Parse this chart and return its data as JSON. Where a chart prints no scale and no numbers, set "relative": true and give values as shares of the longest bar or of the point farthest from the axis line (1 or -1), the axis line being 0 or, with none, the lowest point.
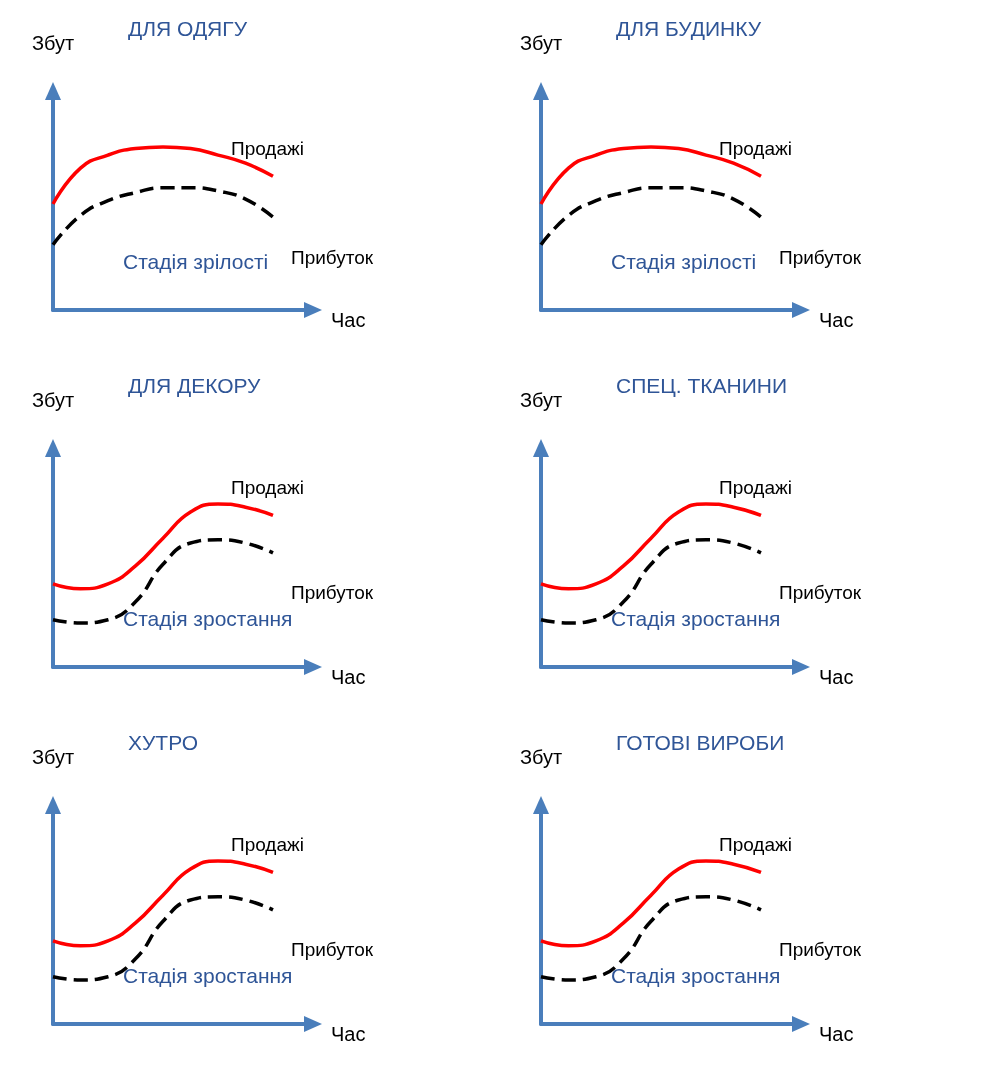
{
  "chart_data": [
    {
      "type": "line",
      "title": "ДЛЯ ОДЯГУ",
      "xlabel": "Час",
      "ylabel": "Збут",
      "relative": true,
      "grid": false,
      "legend": false,
      "marker": "none",
      "categories": [
        null,
        null,
        null,
        null,
        null,
        null,
        null,
        null,
        null
      ],
      "annotations": [
        "Стадія зрілості"
      ],
      "series": [
        {
          "name": "Продажі",
          "color": "#ff0000",
          "line_style": "solid",
          "values": [
            0.65,
            0.87,
            0.95,
            0.99,
            1,
            0.99,
            0.95,
            0.9,
            0.82
          ]
        },
        {
          "name": "Прибуток",
          "color": "#000000",
          "line_style": "dashed",
          "values": [
            0.4,
            0.58,
            0.67,
            0.72,
            0.75,
            0.75,
            0.73,
            0.68,
            0.57
          ]
        }
      ]
    },
    {
      "type": "line",
      "title": "ДЛЯ БУДИНКУ",
      "xlabel": "Час",
      "ylabel": "Збут",
      "relative": true,
      "grid": false,
      "legend": false,
      "marker": "none",
      "categories": [
        null,
        null,
        null,
        null,
        null,
        null,
        null,
        null,
        null
      ],
      "annotations": [
        "Стадія зрілості"
      ],
      "series": [
        {
          "name": "Продажі",
          "color": "#ff0000",
          "line_style": "solid",
          "values": [
            0.65,
            0.87,
            0.95,
            0.99,
            1,
            0.99,
            0.95,
            0.9,
            0.82
          ]
        },
        {
          "name": "Прибуток",
          "color": "#000000",
          "line_style": "dashed",
          "values": [
            0.4,
            0.58,
            0.67,
            0.72,
            0.75,
            0.75,
            0.73,
            0.68,
            0.57
          ]
        }
      ]
    },
    {
      "type": "line",
      "title": "ДЛЯ ДЕКОРУ",
      "xlabel": "Час",
      "ylabel": "Збут",
      "relative": true,
      "grid": false,
      "legend": false,
      "marker": "none",
      "categories": [
        null,
        null,
        null,
        null,
        null,
        null,
        null,
        null,
        null
      ],
      "annotations": [
        "Стадія зростання"
      ],
      "series": [
        {
          "name": "Продажі",
          "color": "#ff0000",
          "line_style": "solid",
          "values": [
            0.51,
            0.48,
            0.51,
            0.62,
            0.79,
            0.95,
            1,
            0.98,
            0.93
          ]
        },
        {
          "name": "Прибуток",
          "color": "#000000",
          "line_style": "dashed",
          "values": [
            0.29,
            0.27,
            0.29,
            0.4,
            0.63,
            0.76,
            0.78,
            0.76,
            0.7
          ]
        }
      ]
    },
    {
      "type": "line",
      "title": "СПЕЦ. ТКАНИНИ",
      "xlabel": "Час",
      "ylabel": "Збут",
      "relative": true,
      "grid": false,
      "legend": false,
      "marker": "none",
      "categories": [
        null,
        null,
        null,
        null,
        null,
        null,
        null,
        null,
        null
      ],
      "annotations": [
        "Стадія зростання"
      ],
      "series": [
        {
          "name": "Продажі",
          "color": "#ff0000",
          "line_style": "solid",
          "values": [
            0.51,
            0.48,
            0.51,
            0.62,
            0.79,
            0.95,
            1,
            0.98,
            0.93
          ]
        },
        {
          "name": "Прибуток",
          "color": "#000000",
          "line_style": "dashed",
          "values": [
            0.29,
            0.27,
            0.29,
            0.4,
            0.63,
            0.76,
            0.78,
            0.76,
            0.7
          ]
        }
      ]
    },
    {
      "type": "line",
      "title": "ХУТРО",
      "xlabel": "Час",
      "ylabel": "Збут",
      "relative": true,
      "grid": false,
      "legend": false,
      "marker": "none",
      "categories": [
        null,
        null,
        null,
        null,
        null,
        null,
        null,
        null,
        null
      ],
      "annotations": [
        "Стадія зростання"
      ],
      "series": [
        {
          "name": "Продажі",
          "color": "#ff0000",
          "line_style": "solid",
          "values": [
            0.51,
            0.48,
            0.51,
            0.62,
            0.79,
            0.95,
            1,
            0.98,
            0.93
          ]
        },
        {
          "name": "Прибуток",
          "color": "#000000",
          "line_style": "dashed",
          "values": [
            0.29,
            0.27,
            0.29,
            0.4,
            0.63,
            0.76,
            0.78,
            0.76,
            0.7
          ]
        }
      ]
    },
    {
      "type": "line",
      "title": "ГОТОВІ ВИРОБИ",
      "xlabel": "Час",
      "ylabel": "Збут",
      "relative": true,
      "grid": false,
      "legend": false,
      "marker": "none",
      "categories": [
        null,
        null,
        null,
        null,
        null,
        null,
        null,
        null,
        null
      ],
      "annotations": [
        "Стадія зростання"
      ],
      "series": [
        {
          "name": "Продажі",
          "color": "#ff0000",
          "line_style": "solid",
          "values": [
            0.51,
            0.48,
            0.51,
            0.62,
            0.79,
            0.95,
            1,
            0.98,
            0.93
          ]
        },
        {
          "name": "Прибуток",
          "color": "#000000",
          "line_style": "dashed",
          "values": [
            0.29,
            0.27,
            0.29,
            0.4,
            0.63,
            0.76,
            0.78,
            0.76,
            0.7
          ]
        }
      ]
    }
  ]
}
